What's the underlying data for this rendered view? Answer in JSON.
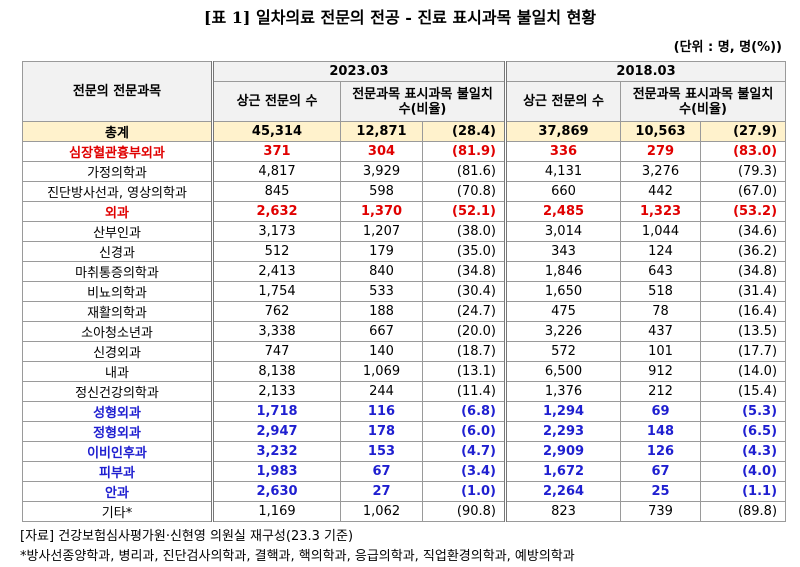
{
  "title": "[표 1] 일차의료 전문의 전공 - 진료 표시과목 불일치 현황",
  "unit": "(단위 : 명, 명(%))",
  "table": {
    "header": {
      "name": "전문의 전문과목",
      "years": [
        "2023.03",
        "2018.03"
      ],
      "sub": [
        "상근 전문의 수",
        "전문과목 표시과목 불일치 수(비율)",
        "상근 전문의 수",
        "전문과목 표시과목 불일치 수(비율)"
      ]
    },
    "rows": [
      {
        "cells": [
          "총계",
          "45,314",
          "12,871",
          "(28.4)",
          "37,869",
          "10,563",
          "(27.9)"
        ],
        "bold": true,
        "background": "#fff2cc",
        "color": "#000000"
      },
      {
        "cells": [
          "심장혈관흉부외과",
          "371",
          "304",
          "(81.9)",
          "336",
          "279",
          "(83.0)"
        ],
        "bold": true,
        "color": "#e00000"
      },
      {
        "cells": [
          "가정의학과",
          "4,817",
          "3,929",
          "(81.6)",
          "4,131",
          "3,276",
          "(79.3)"
        ]
      },
      {
        "cells": [
          "진단방사선과, 영상의학과",
          "845",
          "598",
          "(70.8)",
          "660",
          "442",
          "(67.0)"
        ]
      },
      {
        "cells": [
          "외과",
          "2,632",
          "1,370",
          "(52.1)",
          "2,485",
          "1,323",
          "(53.2)"
        ],
        "bold": true,
        "color": "#e00000"
      },
      {
        "cells": [
          "산부인과",
          "3,173",
          "1,207",
          "(38.0)",
          "3,014",
          "1,044",
          "(34.6)"
        ]
      },
      {
        "cells": [
          "신경과",
          "512",
          "179",
          "(35.0)",
          "343",
          "124",
          "(36.2)"
        ]
      },
      {
        "cells": [
          "마취통증의학과",
          "2,413",
          "840",
          "(34.8)",
          "1,846",
          "643",
          "(34.8)"
        ]
      },
      {
        "cells": [
          "비뇨의학과",
          "1,754",
          "533",
          "(30.4)",
          "1,650",
          "518",
          "(31.4)"
        ]
      },
      {
        "cells": [
          "재활의학과",
          "762",
          "188",
          "(24.7)",
          "475",
          "78",
          "(16.4)"
        ]
      },
      {
        "cells": [
          "소아청소년과",
          "3,338",
          "667",
          "(20.0)",
          "3,226",
          "437",
          "(13.5)"
        ]
      },
      {
        "cells": [
          "신경외과",
          "747",
          "140",
          "(18.7)",
          "572",
          "101",
          "(17.7)"
        ]
      },
      {
        "cells": [
          "내과",
          "8,138",
          "1,069",
          "(13.1)",
          "6,500",
          "912",
          "(14.0)"
        ]
      },
      {
        "cells": [
          "정신건강의학과",
          "2,133",
          "244",
          "(11.4)",
          "1,376",
          "212",
          "(15.4)"
        ]
      },
      {
        "cells": [
          "성형외과",
          "1,718",
          "116",
          "(6.8)",
          "1,294",
          "69",
          "(5.3)"
        ],
        "bold": true,
        "color": "#1f1fd0"
      },
      {
        "cells": [
          "정형외과",
          "2,947",
          "178",
          "(6.0)",
          "2,293",
          "148",
          "(6.5)"
        ],
        "bold": true,
        "color": "#1f1fd0"
      },
      {
        "cells": [
          "이비인후과",
          "3,232",
          "153",
          "(4.7)",
          "2,909",
          "126",
          "(4.3)"
        ],
        "bold": true,
        "color": "#1f1fd0"
      },
      {
        "cells": [
          "피부과",
          "1,983",
          "67",
          "(3.4)",
          "1,672",
          "67",
          "(4.0)"
        ],
        "bold": true,
        "color": "#1f1fd0"
      },
      {
        "cells": [
          "안과",
          "2,630",
          "27",
          "(1.0)",
          "2,264",
          "25",
          "(1.1)"
        ],
        "bold": true,
        "color": "#1f1fd0"
      },
      {
        "cells": [
          "기타*",
          "1,169",
          "1,062",
          "(90.8)",
          "823",
          "739",
          "(89.8)"
        ]
      }
    ]
  },
  "notes": [
    "[자료] 건강보험심사평가원·신현영 의원실 재구성(23.3 기준)",
    "*방사선종양학과, 병리과, 진단검사의학과, 결핵과, 핵의학과, 응급의학과, 직업환경의학과, 예방의학과"
  ]
}
